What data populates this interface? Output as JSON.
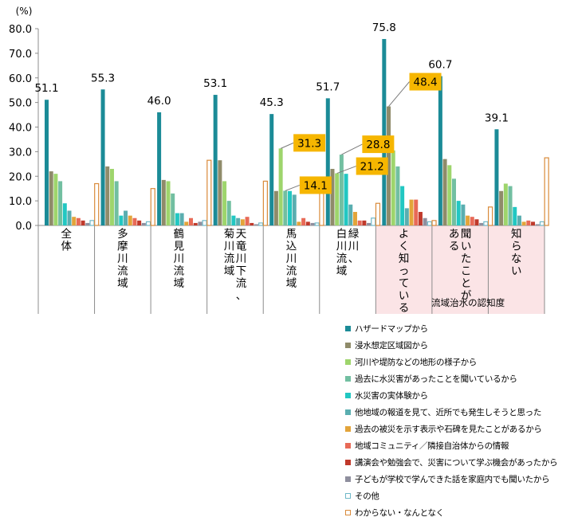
{
  "chart_data": {
    "type": "bar",
    "unit_label": "(%)",
    "ylim": [
      0,
      80
    ],
    "yticks": [
      "0.0",
      "10.0",
      "20.0",
      "30.0",
      "40.0",
      "50.0",
      "60.0",
      "70.0",
      "80.0"
    ],
    "group_caption": "流域治水の認知度",
    "categories": [
      "全体",
      "多摩川流域",
      "鶴見川流域",
      "天竜川下流、菊川流域",
      "馬込川流域",
      "緑川、白川流域",
      "よく知っている",
      "聞いたことがある",
      "知らない"
    ],
    "category_lines": [
      [
        "全体"
      ],
      [
        "多摩川流域"
      ],
      [
        "鶴見川流域"
      ],
      [
        "天竜川下流、",
        "菊川流域"
      ],
      [
        "馬込川流域"
      ],
      [
        "緑川、",
        "白川流域"
      ],
      [
        "よく知っている"
      ],
      [
        "聞いたことが",
        "ある"
      ],
      [
        "知らない"
      ]
    ],
    "highlighted_categories": [
      "よく知っている",
      "聞いたことがある",
      "知らない"
    ],
    "series": [
      {
        "name": "ハザードマップから",
        "color": "#1b8b97",
        "values": [
          51.1,
          55.3,
          46.0,
          53.1,
          45.3,
          51.7,
          75.8,
          60.7,
          39.1
        ]
      },
      {
        "name": "浸水想定区域図から",
        "color": "#8f8b6a",
        "values": [
          22.0,
          24.0,
          18.5,
          26.5,
          14.0,
          23.0,
          48.4,
          27.0,
          14.0
        ]
      },
      {
        "name": "河川や堤防などの地形の様子から",
        "color": "#9ed56c",
        "values": [
          21.0,
          23.0,
          18.0,
          18.0,
          31.3,
          21.2,
          30.5,
          24.5,
          17.0
        ]
      },
      {
        "name": "過去に水災害があったことを聞いているから",
        "color": "#72bfa1",
        "values": [
          18.0,
          18.0,
          13.0,
          10.0,
          14.1,
          28.8,
          24.0,
          19.0,
          16.0
        ]
      },
      {
        "name": "水災害の実体験から",
        "color": "#22c7c2",
        "values": [
          9.0,
          4.0,
          5.0,
          4.0,
          14.0,
          21.0,
          16.0,
          10.0,
          7.5
        ]
      },
      {
        "name": "他地域の報道を見て、近所でも発生しそうと思った",
        "color": "#5aaeb0",
        "values": [
          6.0,
          6.0,
          5.0,
          3.0,
          12.5,
          8.5,
          7.0,
          8.5,
          4.0
        ]
      },
      {
        "name": "過去の被災を示す表示や石碑を見たことがあるから",
        "color": "#e3a43a",
        "values": [
          3.5,
          4.0,
          1.5,
          2.5,
          1.5,
          5.5,
          10.5,
          4.0,
          1.5
        ]
      },
      {
        "name": "地域コミュニティ／隣接自治体からの情報",
        "color": "#e86a57",
        "values": [
          3.0,
          3.0,
          3.0,
          3.5,
          3.0,
          2.0,
          10.5,
          3.5,
          2.0
        ]
      },
      {
        "name": "講演会や勉強会で、災害について学ぶ機会があったから",
        "color": "#c0392b",
        "values": [
          2.0,
          2.0,
          1.0,
          1.0,
          1.5,
          2.0,
          5.5,
          2.5,
          1.5
        ]
      },
      {
        "name": "子どもが学校で学んできた話を家庭内でも聞いたから",
        "color": "#8f8f9e",
        "values": [
          1.0,
          1.0,
          1.5,
          0.5,
          1.0,
          1.0,
          3.0,
          1.0,
          0.5
        ]
      },
      {
        "name": "その他",
        "color": "#6fb8c8",
        "values": [
          2.0,
          1.5,
          2.0,
          1.0,
          1.0,
          3.0,
          1.5,
          1.5,
          1.5
        ]
      },
      {
        "name": "わからない・なんとなく",
        "color": "#d98a3a",
        "values": [
          17.0,
          15.0,
          26.5,
          18.0,
          15.5,
          9.0,
          2.0,
          7.5,
          27.5
        ]
      }
    ],
    "bar_value_labels": [
      {
        "series": 0,
        "category": 0,
        "text": "51.1"
      },
      {
        "series": 0,
        "category": 1,
        "text": "55.3"
      },
      {
        "series": 0,
        "category": 2,
        "text": "46.0"
      },
      {
        "series": 0,
        "category": 3,
        "text": "53.1"
      },
      {
        "series": 0,
        "category": 4,
        "text": "45.3"
      },
      {
        "series": 0,
        "category": 5,
        "text": "51.7"
      },
      {
        "series": 0,
        "category": 6,
        "text": "75.8"
      },
      {
        "series": 0,
        "category": 7,
        "text": "60.7"
      },
      {
        "series": 0,
        "category": 8,
        "text": "39.1"
      }
    ],
    "callouts": [
      {
        "series": 2,
        "category": 4,
        "text": "31.3"
      },
      {
        "series": 3,
        "category": 4,
        "text": "14.1"
      },
      {
        "series": 2,
        "category": 5,
        "text": "21.2"
      },
      {
        "series": 3,
        "category": 5,
        "text": "28.8"
      },
      {
        "series": 1,
        "category": 6,
        "text": "48.4"
      }
    ],
    "legend_position": "bottom-right",
    "grid": false
  }
}
